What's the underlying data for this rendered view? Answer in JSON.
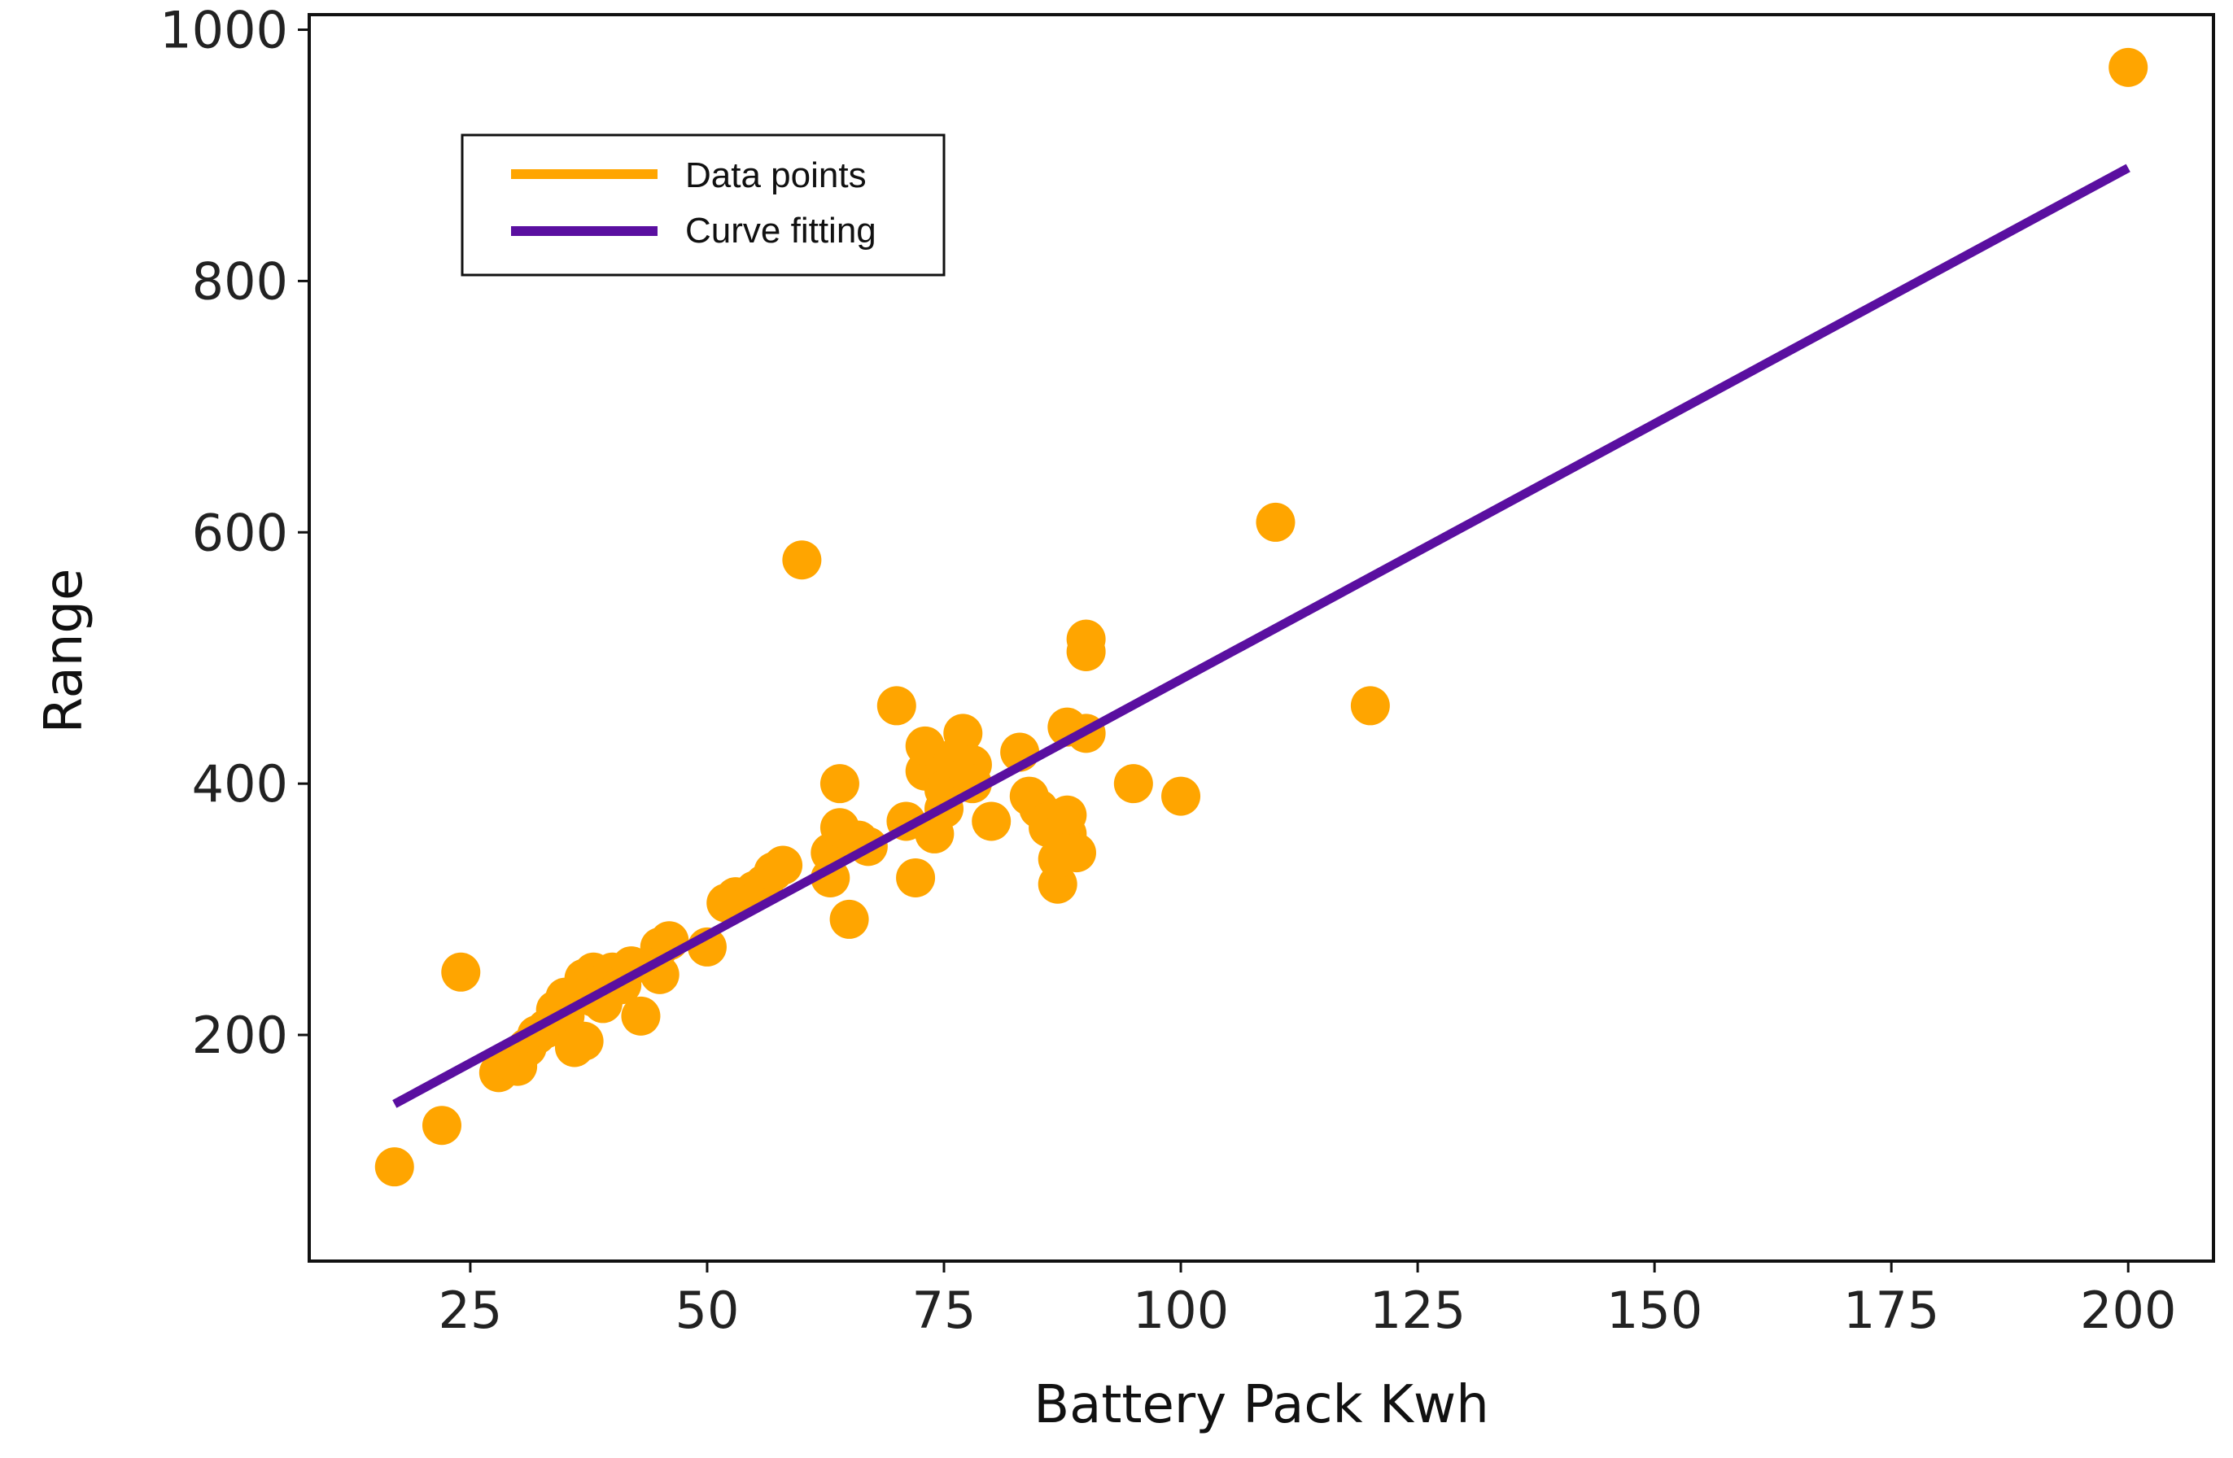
{
  "chart_data": {
    "type": "scatter",
    "title": "",
    "xlabel": "Battery Pack Kwh",
    "ylabel": "Range",
    "xlim": [
      8,
      209
    ],
    "ylim": [
      20,
      1012
    ],
    "xticks": [
      25,
      50,
      75,
      100,
      125,
      150,
      175,
      200
    ],
    "yticks": [
      200,
      400,
      600,
      800,
      1000
    ],
    "grid": false,
    "legend_position": "upper-left",
    "series": [
      {
        "name": "Data points",
        "kind": "scatter",
        "color": "#FFA500",
        "points": [
          [
            17,
            95
          ],
          [
            22,
            128
          ],
          [
            24,
            250
          ],
          [
            28,
            170
          ],
          [
            29,
            180
          ],
          [
            30,
            175
          ],
          [
            31,
            190
          ],
          [
            32,
            200
          ],
          [
            33,
            205
          ],
          [
            34,
            220
          ],
          [
            35,
            215
          ],
          [
            35,
            230
          ],
          [
            36,
            190
          ],
          [
            37,
            195
          ],
          [
            37,
            245
          ],
          [
            38,
            250
          ],
          [
            38,
            230
          ],
          [
            39,
            225
          ],
          [
            40,
            250
          ],
          [
            41,
            240
          ],
          [
            42,
            255
          ],
          [
            43,
            215
          ],
          [
            45,
            248
          ],
          [
            45,
            270
          ],
          [
            46,
            275
          ],
          [
            50,
            270
          ],
          [
            52,
            305
          ],
          [
            53,
            310
          ],
          [
            55,
            315
          ],
          [
            56,
            320
          ],
          [
            57,
            330
          ],
          [
            58,
            335
          ],
          [
            60,
            578
          ],
          [
            63,
            325
          ],
          [
            63,
            345
          ],
          [
            64,
            400
          ],
          [
            64,
            365
          ],
          [
            65,
            292
          ],
          [
            66,
            355
          ],
          [
            67,
            350
          ],
          [
            70,
            462
          ],
          [
            71,
            370
          ],
          [
            72,
            325
          ],
          [
            73,
            410
          ],
          [
            73,
            430
          ],
          [
            74,
            360
          ],
          [
            75,
            380
          ],
          [
            75,
            395
          ],
          [
            76,
            420
          ],
          [
            77,
            440
          ],
          [
            78,
            415
          ],
          [
            78,
            400
          ],
          [
            80,
            370
          ],
          [
            83,
            425
          ],
          [
            84,
            390
          ],
          [
            85,
            380
          ],
          [
            86,
            365
          ],
          [
            86,
            370
          ],
          [
            87,
            320
          ],
          [
            87,
            340
          ],
          [
            88,
            360
          ],
          [
            88,
            375
          ],
          [
            89,
            345
          ],
          [
            88,
            445
          ],
          [
            90,
            440
          ],
          [
            90,
            505
          ],
          [
            90,
            515
          ],
          [
            95,
            400
          ],
          [
            100,
            390
          ],
          [
            110,
            608
          ],
          [
            120,
            462
          ],
          [
            200,
            970
          ]
        ]
      },
      {
        "name": "Curve fitting",
        "kind": "line",
        "color": "#5A0FA0",
        "points": [
          [
            17,
            145
          ],
          [
            200,
            890
          ]
        ]
      }
    ]
  }
}
